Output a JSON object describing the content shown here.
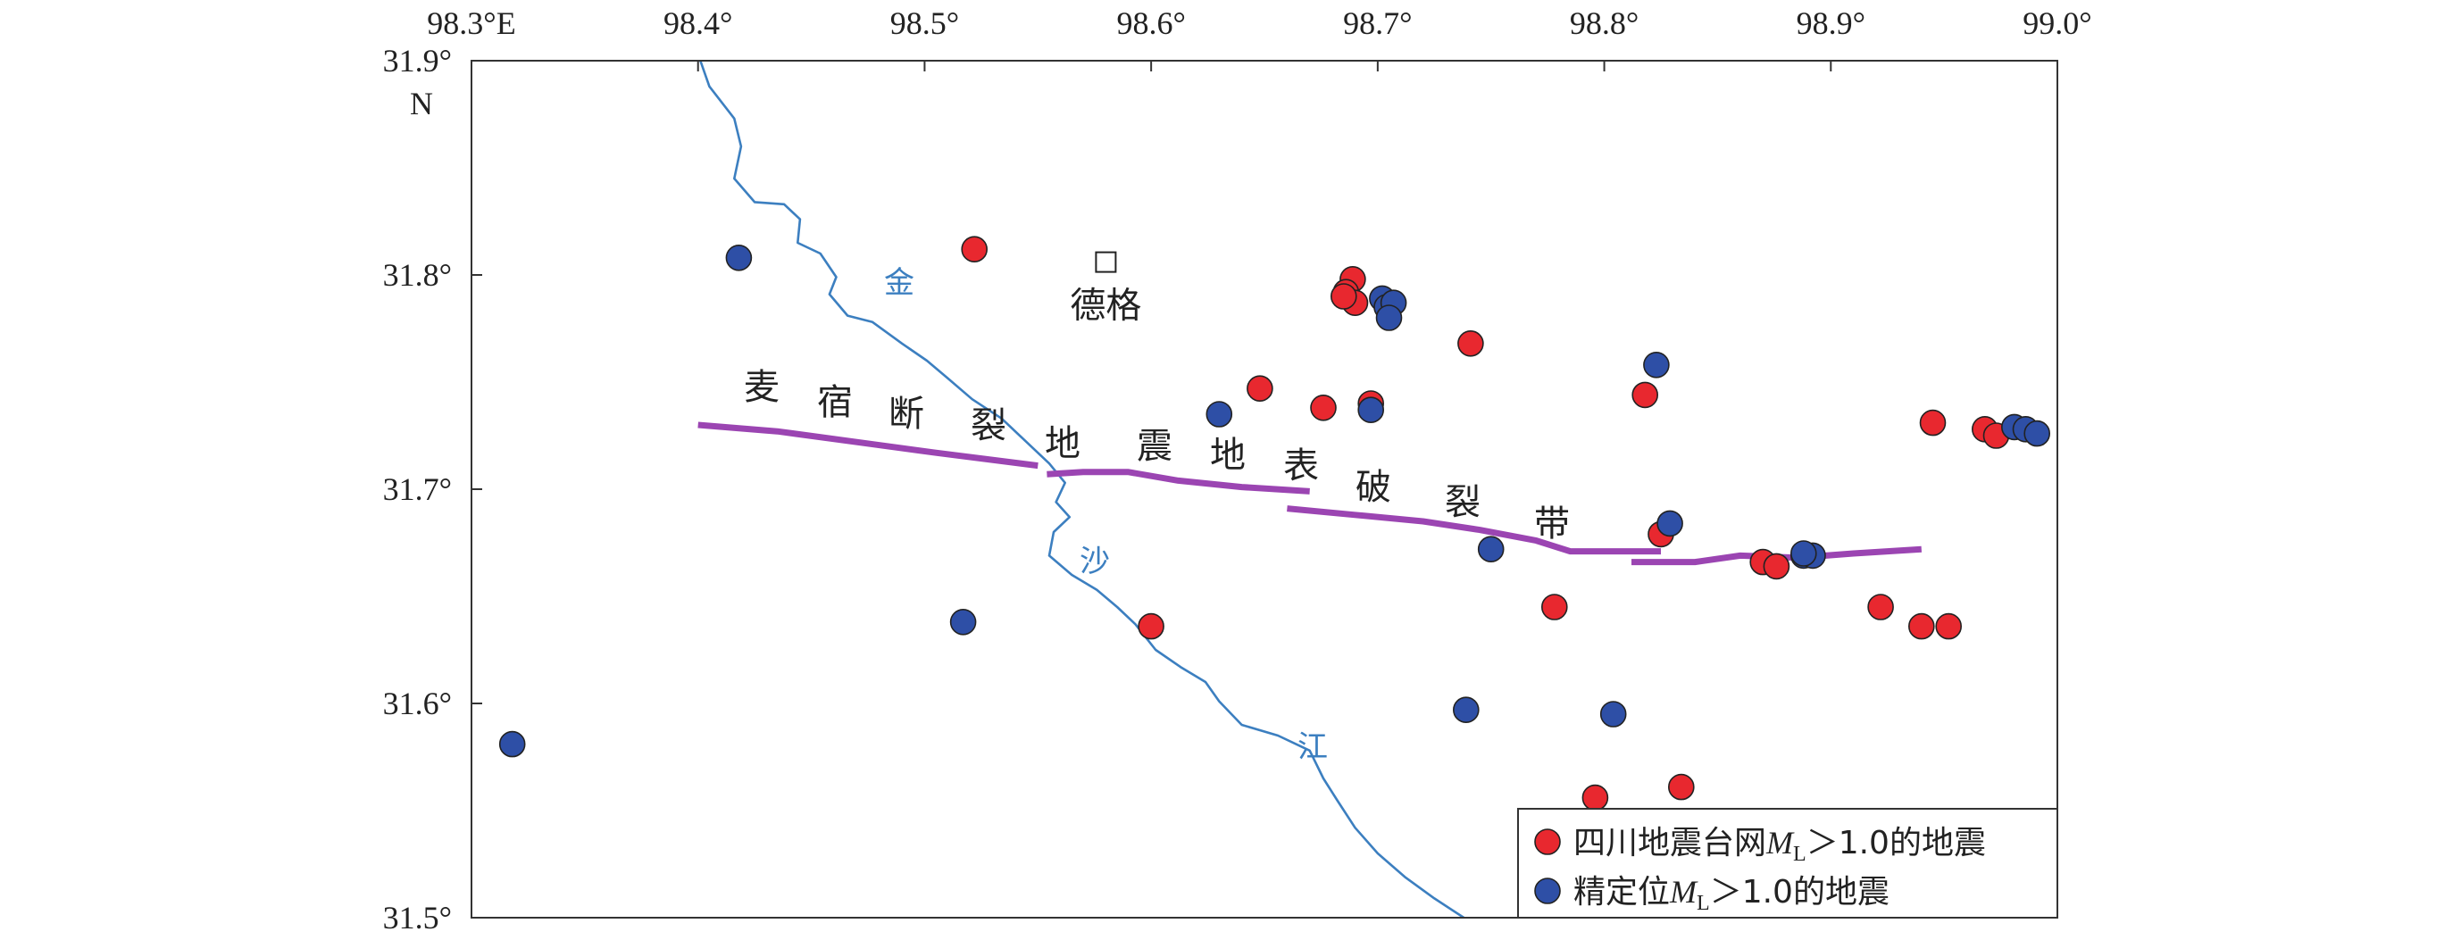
{
  "map": {
    "lon_range": [
      98.3,
      99.0
    ],
    "lat_range": [
      31.5,
      31.9
    ],
    "x_ticks": [
      {
        "value": 98.3,
        "label": "98.3°E"
      },
      {
        "value": 98.4,
        "label": "98.4°"
      },
      {
        "value": 98.5,
        "label": "98.5°"
      },
      {
        "value": 98.6,
        "label": "98.6°"
      },
      {
        "value": 98.7,
        "label": "98.7°"
      },
      {
        "value": 98.8,
        "label": "98.8°"
      },
      {
        "value": 98.9,
        "label": "98.9°"
      },
      {
        "value": 99.0,
        "label": "99.0°"
      }
    ],
    "y_ticks": [
      {
        "value": 31.9,
        "label": "31.9°"
      },
      {
        "value": 31.8,
        "label": "31.8°"
      },
      {
        "value": 31.7,
        "label": "31.7°"
      },
      {
        "value": 31.6,
        "label": "31.6°"
      },
      {
        "value": 31.5,
        "label": "31.5°"
      }
    ],
    "north_label": "N",
    "town": {
      "name": "德格",
      "lon": 98.58,
      "lat": 31.806
    },
    "river": {
      "name_chars": [
        "金",
        "沙",
        "江"
      ],
      "color": "#3c7fc0",
      "path": [
        [
          98.401,
          31.9
        ],
        [
          98.405,
          31.888
        ],
        [
          98.416,
          31.873
        ],
        [
          98.419,
          31.86
        ],
        [
          98.416,
          31.845
        ],
        [
          98.425,
          31.834
        ],
        [
          98.438,
          31.833
        ],
        [
          98.445,
          31.826
        ],
        [
          98.444,
          31.815
        ],
        [
          98.454,
          31.81
        ],
        [
          98.461,
          31.799
        ],
        [
          98.458,
          31.791
        ],
        [
          98.466,
          31.781
        ],
        [
          98.477,
          31.778
        ],
        [
          98.49,
          31.768
        ],
        [
          98.501,
          31.76
        ],
        [
          98.51,
          31.752
        ],
        [
          98.521,
          31.742
        ],
        [
          98.534,
          31.733
        ],
        [
          98.545,
          31.722
        ],
        [
          98.555,
          31.712
        ],
        [
          98.562,
          31.703
        ],
        [
          98.558,
          31.694
        ],
        [
          98.564,
          31.687
        ],
        [
          98.557,
          31.68
        ],
        [
          98.555,
          31.669
        ],
        [
          98.565,
          31.66
        ],
        [
          98.576,
          31.653
        ],
        [
          98.585,
          31.645
        ],
        [
          98.593,
          31.637
        ],
        [
          98.602,
          31.625
        ],
        [
          98.613,
          31.617
        ],
        [
          98.624,
          31.61
        ],
        [
          98.63,
          31.601
        ],
        [
          98.64,
          31.59
        ],
        [
          98.656,
          31.585
        ],
        [
          98.67,
          31.578
        ],
        [
          98.676,
          31.565
        ],
        [
          98.682,
          31.555
        ],
        [
          98.69,
          31.542
        ],
        [
          98.7,
          31.53
        ],
        [
          98.712,
          31.519
        ],
        [
          98.725,
          31.509
        ],
        [
          98.738,
          31.5
        ]
      ]
    },
    "fault": {
      "name_chars": [
        "麦",
        "宿",
        "断",
        "裂",
        "地",
        "震",
        "地",
        "表",
        "破",
        "裂",
        "带"
      ],
      "color": "#9b45b2",
      "segments": [
        [
          [
            98.4,
            31.73
          ],
          [
            98.435,
            31.727
          ],
          [
            98.47,
            31.722
          ],
          [
            98.505,
            31.717
          ],
          [
            98.55,
            31.711
          ]
        ],
        [
          [
            98.554,
            31.707
          ],
          [
            [
              98.57,
              31.708
            ]
          ],
          [
            98.59,
            31.708
          ],
          [
            98.612,
            31.704
          ],
          [
            98.64,
            31.701
          ],
          [
            98.67,
            31.699
          ]
        ],
        [
          [
            98.66,
            31.691
          ],
          [
            98.69,
            31.688
          ],
          [
            98.72,
            31.685
          ],
          [
            98.745,
            31.681
          ],
          [
            98.77,
            31.676
          ],
          [
            98.785,
            31.671
          ],
          [
            98.825,
            31.671
          ]
        ],
        [
          [
            98.812,
            31.666
          ],
          [
            98.84,
            31.666
          ],
          [
            98.86,
            31.669
          ],
          [
            98.885,
            31.668
          ],
          [
            98.91,
            31.67
          ],
          [
            98.94,
            31.672
          ]
        ]
      ]
    },
    "earthquakes_sichuan": {
      "color": "#e8282f",
      "points": [
        [
          98.522,
          31.812
        ],
        [
          98.689,
          31.798
        ],
        [
          98.686,
          31.792
        ],
        [
          98.69,
          31.787
        ],
        [
          98.685,
          31.79
        ],
        [
          98.741,
          31.768
        ],
        [
          98.648,
          31.747
        ],
        [
          98.676,
          31.738
        ],
        [
          98.697,
          31.74
        ],
        [
          98.818,
          31.744
        ],
        [
          98.945,
          31.731
        ],
        [
          98.968,
          31.728
        ],
        [
          98.973,
          31.725
        ],
        [
          98.825,
          31.679
        ],
        [
          98.87,
          31.666
        ],
        [
          98.876,
          31.664
        ],
        [
          98.778,
          31.645
        ],
        [
          98.922,
          31.645
        ],
        [
          98.6,
          31.636
        ],
        [
          98.94,
          31.636
        ],
        [
          98.952,
          31.636
        ],
        [
          98.796,
          31.556
        ],
        [
          98.834,
          31.561
        ]
      ]
    },
    "earthquakes_relocated": {
      "color": "#2e4fa6",
      "points": [
        [
          98.418,
          31.808
        ],
        [
          98.702,
          31.789
        ],
        [
          98.704,
          31.785
        ],
        [
          98.707,
          31.787
        ],
        [
          98.705,
          31.78
        ],
        [
          98.823,
          31.758
        ],
        [
          98.63,
          31.735
        ],
        [
          98.697,
          31.737
        ],
        [
          98.981,
          31.729
        ],
        [
          98.986,
          31.728
        ],
        [
          98.991,
          31.726
        ],
        [
          98.829,
          31.684
        ],
        [
          98.75,
          31.672
        ],
        [
          98.888,
          31.669
        ],
        [
          98.892,
          31.669
        ],
        [
          98.888,
          31.67
        ],
        [
          98.517,
          31.638
        ],
        [
          98.739,
          31.597
        ],
        [
          98.804,
          31.595
        ],
        [
          98.318,
          31.581
        ]
      ]
    }
  },
  "legend": {
    "items": [
      {
        "prefix": "四川地震台网",
        "ml": "M",
        "sub": "L",
        "suffix": "＞1.0的地震",
        "color": "#e8282f"
      },
      {
        "prefix": "精定位",
        "ml": "M",
        "sub": "L",
        "suffix": "＞1.0的地震",
        "color": "#2e4fa6"
      }
    ]
  }
}
